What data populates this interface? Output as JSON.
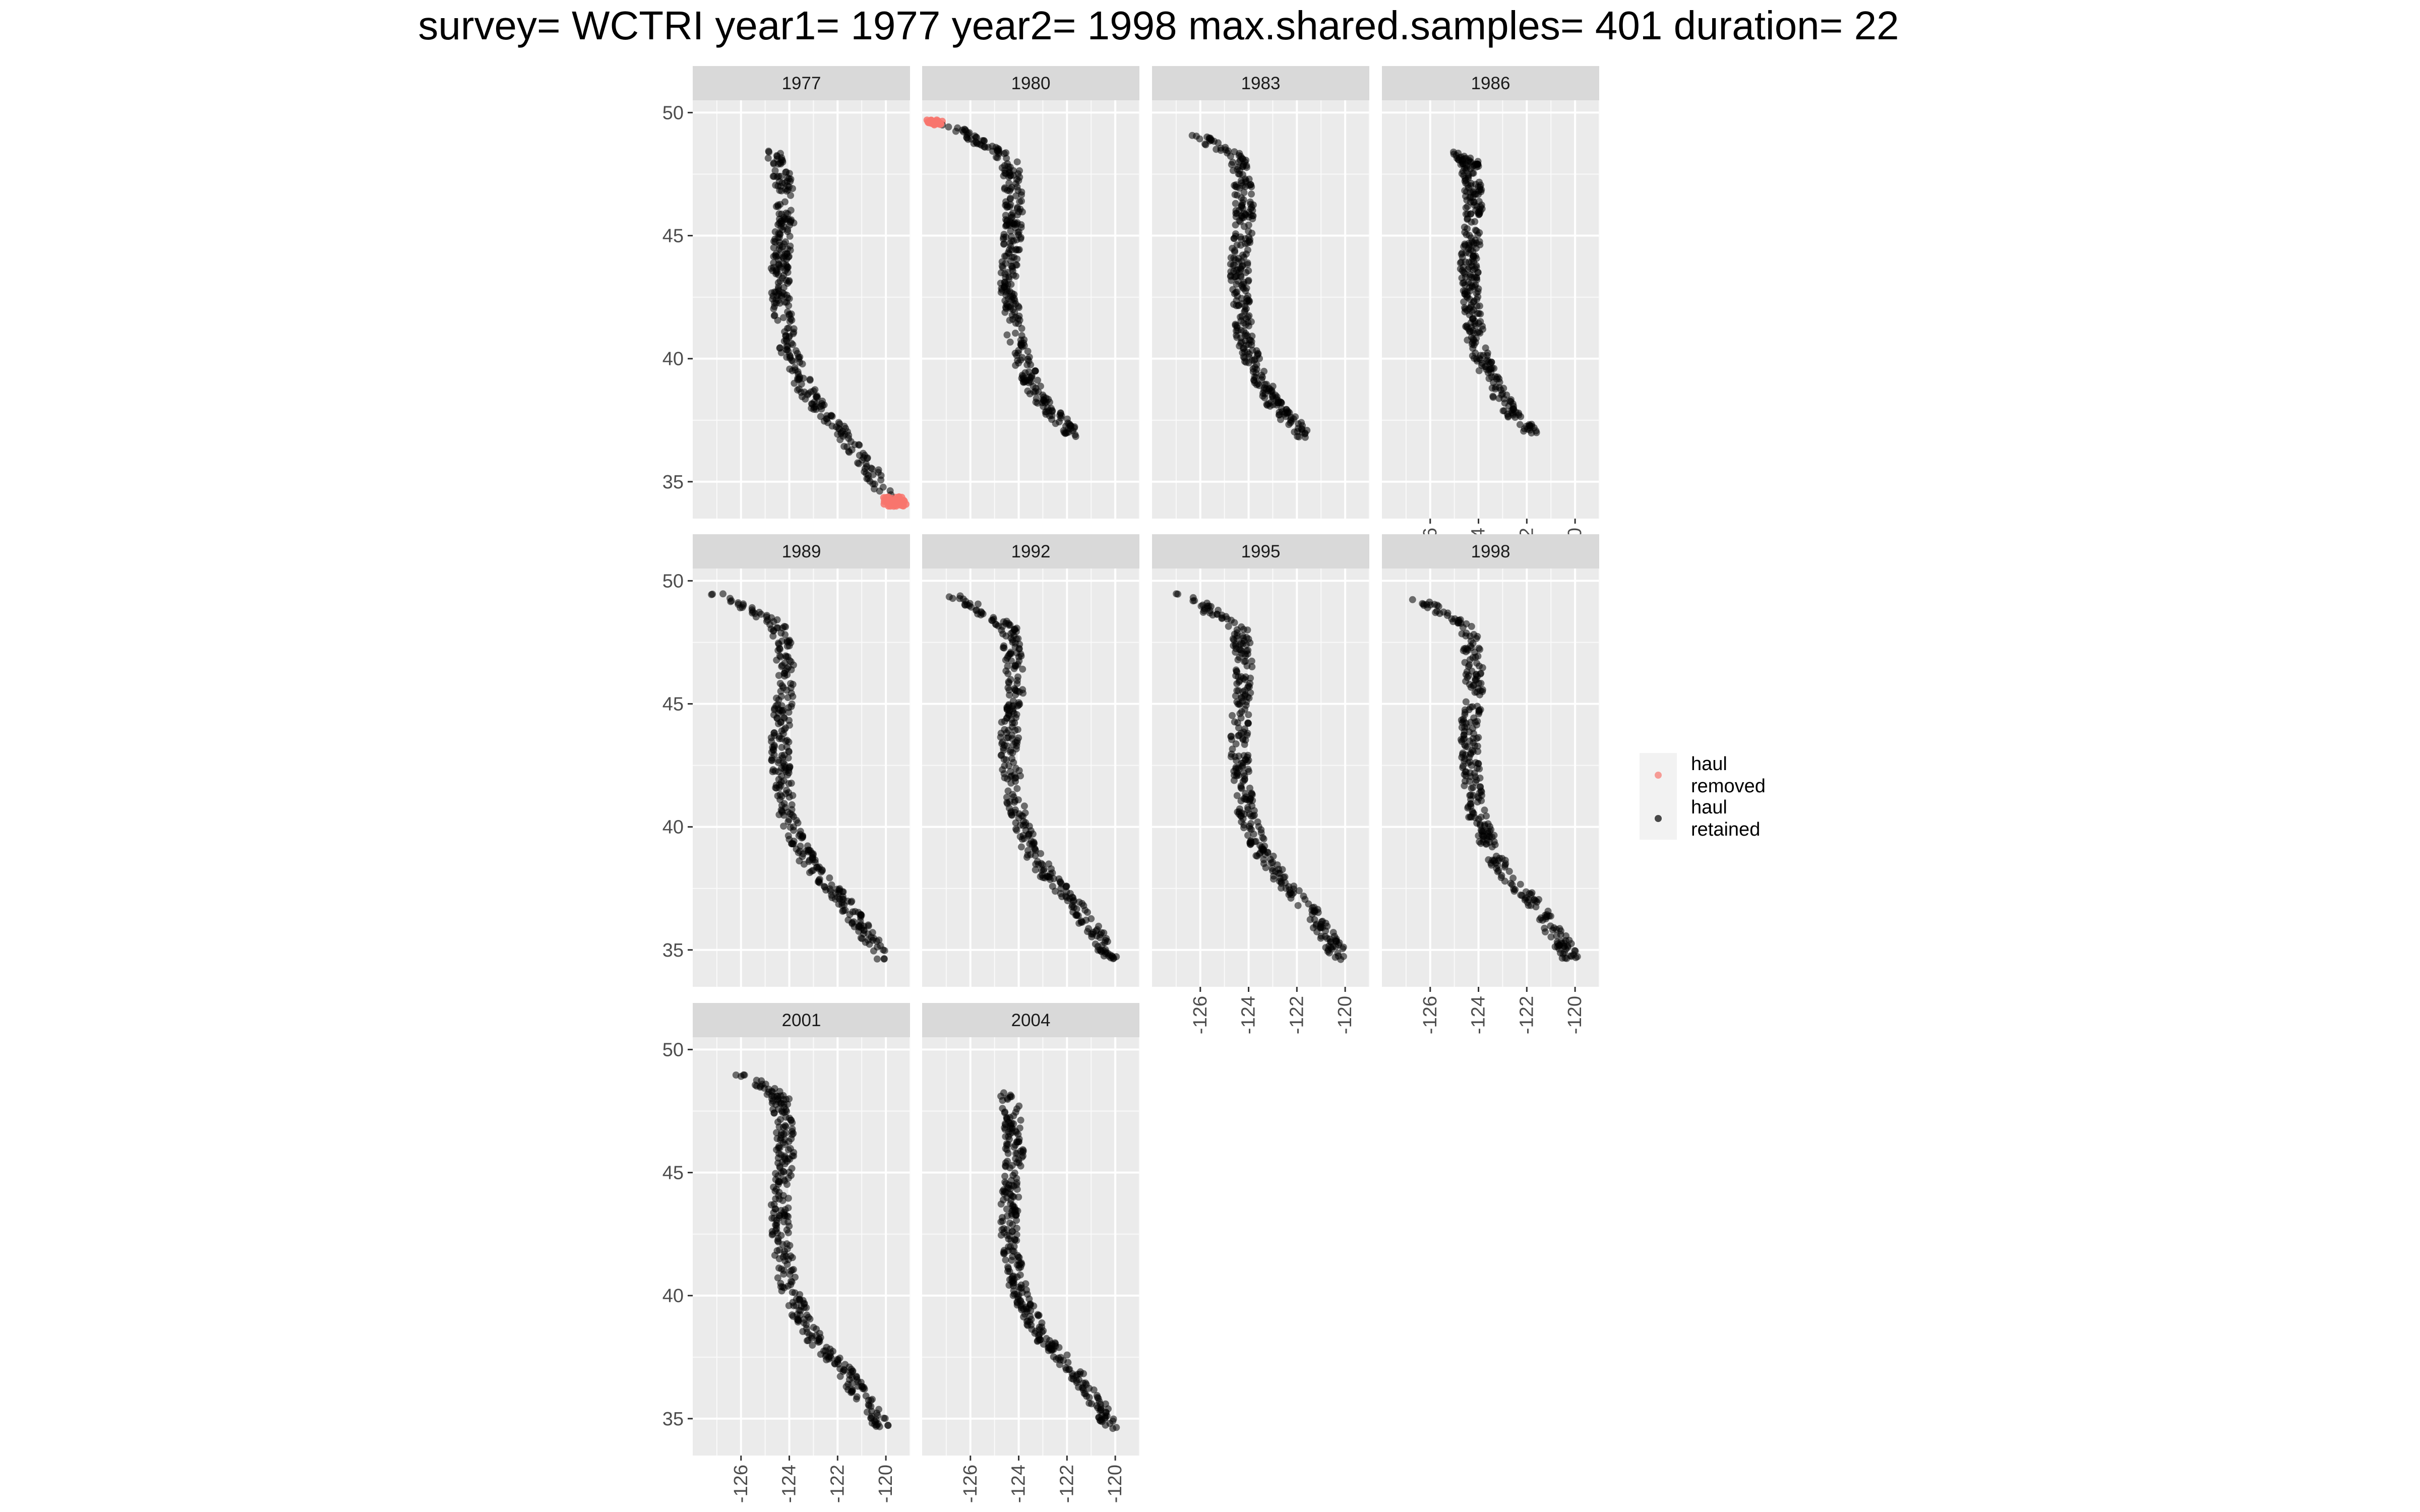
{
  "chart_data": {
    "type": "scatter",
    "title": "survey= WCTRI year1= 1977 year2= 1998 max.shared.samples= 401 duration= 22",
    "xlabel": "",
    "ylabel": "",
    "xlim": [
      -128,
      -119
    ],
    "ylim": [
      33.5,
      50.5
    ],
    "x_ticks": [
      -126,
      -124,
      -122,
      -120
    ],
    "x_tick_labels": [
      "-126",
      "-124",
      "-122",
      "-120"
    ],
    "y_ticks": [
      35,
      40,
      45,
      50
    ],
    "y_tick_labels": [
      "35",
      "40",
      "45",
      "50"
    ],
    "grid": true,
    "legend": {
      "placement": "right",
      "entries": [
        {
          "label_line1": "haul",
          "label_line2": "removed",
          "color": "#f8766d"
        },
        {
          "label_line1": "haul",
          "label_line2": "retained",
          "color": "#000000"
        }
      ]
    },
    "colors": {
      "removed": "#f8766d",
      "retained": "#000000",
      "panel_bg": "#ebebeb",
      "strip_bg": "#d9d9d9",
      "grid": "#ffffff"
    },
    "coastline_path": [
      [
        49.6,
        -127.9
      ],
      [
        49.4,
        -127.3
      ],
      [
        49.1,
        -126.6
      ],
      [
        48.7,
        -126.0
      ],
      [
        48.4,
        -125.3
      ],
      [
        48.0,
        -124.9
      ],
      [
        47.2,
        -124.8
      ],
      [
        46.4,
        -124.7
      ],
      [
        45.6,
        -124.7
      ],
      [
        44.8,
        -124.8
      ],
      [
        44.0,
        -124.9
      ],
      [
        43.3,
        -124.9
      ],
      [
        42.6,
        -124.9
      ],
      [
        41.9,
        -124.8
      ],
      [
        41.2,
        -124.7
      ],
      [
        40.5,
        -124.6
      ],
      [
        40.0,
        -124.4
      ],
      [
        39.3,
        -124.1
      ],
      [
        38.7,
        -123.8
      ],
      [
        38.0,
        -123.3
      ],
      [
        37.5,
        -122.8
      ],
      [
        37.0,
        -122.3
      ],
      [
        36.6,
        -122.0
      ],
      [
        36.0,
        -121.6
      ],
      [
        35.5,
        -121.2
      ],
      [
        35.0,
        -120.9
      ],
      [
        34.6,
        -120.7
      ],
      [
        34.3,
        -120.1
      ],
      [
        34.1,
        -119.6
      ]
    ],
    "facets": [
      {
        "year": "1977",
        "lat_min": 34.0,
        "lat_max": 48.5,
        "removed_lat_min": 34.0,
        "removed_lat_max": 34.4,
        "x_axis_shown": false
      },
      {
        "year": "1980",
        "lat_min": 36.8,
        "lat_max": 49.7,
        "removed_lat_min": 49.5,
        "removed_lat_max": 49.7,
        "x_axis_shown": false
      },
      {
        "year": "1983",
        "lat_min": 36.8,
        "lat_max": 49.2,
        "removed_lat_min": null,
        "removed_lat_max": null,
        "x_axis_shown": false
      },
      {
        "year": "1986",
        "lat_min": 36.9,
        "lat_max": 48.4,
        "removed_lat_min": null,
        "removed_lat_max": null,
        "x_axis_shown": true
      },
      {
        "year": "1989",
        "lat_min": 34.6,
        "lat_max": 49.5,
        "removed_lat_min": null,
        "removed_lat_max": null,
        "x_axis_shown": false
      },
      {
        "year": "1992",
        "lat_min": 34.6,
        "lat_max": 49.4,
        "removed_lat_min": null,
        "removed_lat_max": null,
        "x_axis_shown": false
      },
      {
        "year": "1995",
        "lat_min": 34.6,
        "lat_max": 49.5,
        "removed_lat_min": null,
        "removed_lat_max": null,
        "x_axis_shown": true
      },
      {
        "year": "1998",
        "lat_min": 34.6,
        "lat_max": 49.3,
        "removed_lat_min": null,
        "removed_lat_max": null,
        "x_axis_shown": true
      },
      {
        "year": "2001",
        "lat_min": 34.6,
        "lat_max": 49.1,
        "removed_lat_min": null,
        "removed_lat_max": null,
        "x_axis_shown": true
      },
      {
        "year": "2004",
        "lat_min": 34.6,
        "lat_max": 48.3,
        "removed_lat_min": null,
        "removed_lat_max": null,
        "x_axis_shown": true
      }
    ]
  }
}
